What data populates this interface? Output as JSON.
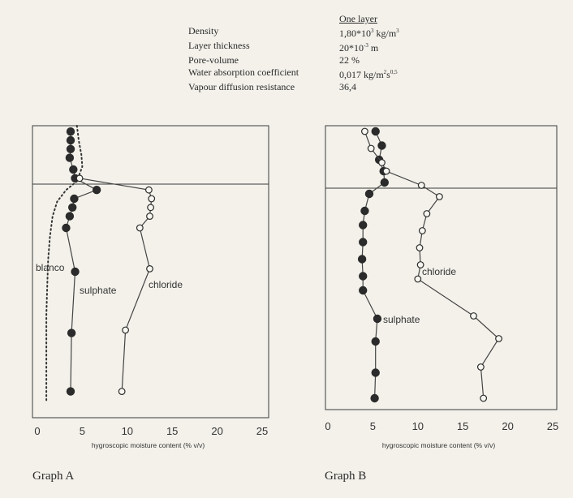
{
  "properties": {
    "header": "One layer",
    "rows": [
      {
        "label": "Density",
        "value": "1,80*10",
        "sup": "3",
        "unit": " kg/m",
        "unit_sup": "3"
      },
      {
        "label": "Layer thickness",
        "value": "20*10",
        "sup": "-3",
        "unit": " m",
        "unit_sup": ""
      },
      {
        "label": "Pore-volume",
        "value": "22 %",
        "sup": "",
        "unit": "",
        "unit_sup": ""
      },
      {
        "label": "Water absorption coefficient",
        "value": "0,017  kg/m",
        "sup": "2",
        "unit": "s",
        "unit_sup": "0,5"
      },
      {
        "label": "Vapour diffusion resistance",
        "value": "36,4",
        "sup": "",
        "unit": "",
        "unit_sup": ""
      }
    ]
  },
  "chart_data": [
    {
      "type": "line",
      "caption": "Graph A",
      "xlabel": "hygroscopic moisture content (% v/v)",
      "xlim": [
        0,
        25
      ],
      "xticks": [
        "0",
        "5",
        "10",
        "15",
        "20",
        "25"
      ],
      "ylim": [
        0,
        100
      ],
      "layer_line": 20,
      "grid": false,
      "series": [
        {
          "name": "blanco",
          "style": "dotted",
          "marker": "none",
          "points": [
            [
              4.4,
              0
            ],
            [
              4.6,
              5
            ],
            [
              4.9,
              10
            ],
            [
              5.0,
              14
            ],
            [
              4.4,
              19
            ],
            [
              3.2,
              22
            ],
            [
              2.2,
              26
            ],
            [
              1.7,
              31
            ],
            [
              1.4,
              38
            ],
            [
              1.2,
              46
            ],
            [
              1.1,
              55
            ],
            [
              1.0,
              65
            ],
            [
              1.0,
              75
            ],
            [
              1.0,
              85
            ],
            [
              1.0,
              94
            ]
          ]
        },
        {
          "name": "sulphate",
          "style": "solid",
          "marker": "filled",
          "points": [
            [
              3.7,
              2
            ],
            [
              3.7,
              5
            ],
            [
              3.7,
              8
            ],
            [
              3.6,
              11
            ],
            [
              4.0,
              15
            ],
            [
              4.2,
              18
            ],
            [
              6.6,
              22
            ],
            [
              4.1,
              25
            ],
            [
              3.9,
              28
            ],
            [
              3.6,
              31
            ],
            [
              3.2,
              35
            ],
            [
              4.2,
              50
            ],
            [
              3.8,
              71
            ],
            [
              3.7,
              91
            ]
          ]
        },
        {
          "name": "chloride",
          "style": "solid",
          "marker": "open",
          "points": [
            [
              4.7,
              18
            ],
            [
              12.4,
              22
            ],
            [
              12.7,
              25
            ],
            [
              12.6,
              28
            ],
            [
              12.5,
              31
            ],
            [
              11.4,
              35
            ],
            [
              12.5,
              49
            ],
            [
              9.8,
              70
            ],
            [
              9.4,
              91
            ]
          ]
        }
      ],
      "annotations": [
        "blanco",
        "sulphate",
        "chloride"
      ]
    },
    {
      "type": "line",
      "caption": "Graph B",
      "xlabel": "hygroscopic moisture content (% v/v)",
      "xlim": [
        0,
        25
      ],
      "xticks": [
        "0",
        "5",
        "10",
        "15",
        "20",
        "25"
      ],
      "ylim": [
        0,
        100
      ],
      "layer_line": 22,
      "grid": false,
      "series": [
        {
          "name": "sulphate",
          "style": "solid",
          "marker": "filled",
          "points": [
            [
              5.3,
              2
            ],
            [
              6.0,
              7
            ],
            [
              5.7,
              12
            ],
            [
              6.2,
              16
            ],
            [
              6.3,
              20
            ],
            [
              4.6,
              24
            ],
            [
              4.1,
              30
            ],
            [
              3.9,
              35
            ],
            [
              3.9,
              41
            ],
            [
              3.8,
              47
            ],
            [
              3.9,
              53
            ],
            [
              3.9,
              58
            ],
            [
              5.5,
              68
            ],
            [
              5.3,
              76
            ],
            [
              5.3,
              87
            ],
            [
              5.2,
              96
            ]
          ]
        },
        {
          "name": "chloride",
          "style": "solid",
          "marker": "open",
          "points": [
            [
              4.1,
              2
            ],
            [
              4.8,
              8
            ],
            [
              6.0,
              13
            ],
            [
              6.5,
              16
            ],
            [
              10.4,
              21
            ],
            [
              12.4,
              25
            ],
            [
              11.0,
              31
            ],
            [
              10.5,
              37
            ],
            [
              10.2,
              43
            ],
            [
              10.3,
              49
            ],
            [
              10.0,
              54
            ],
            [
              16.2,
              67
            ],
            [
              19.0,
              75
            ],
            [
              17.0,
              85
            ],
            [
              17.3,
              96
            ]
          ]
        }
      ],
      "annotations": [
        "chloride",
        "sulphate"
      ]
    }
  ]
}
